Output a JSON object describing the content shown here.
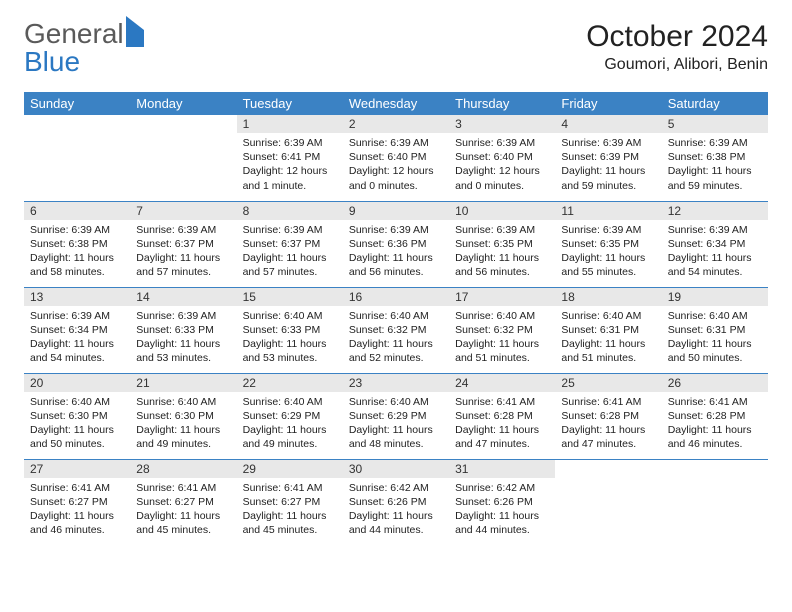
{
  "logo": {
    "text1": "General",
    "text2": "Blue"
  },
  "title": "October 2024",
  "location": "Goumori, Alibori, Benin",
  "colors": {
    "header_bg": "#3b82c4",
    "header_fg": "#ffffff",
    "daynum_bg": "#e8e8e8",
    "border": "#3b82c4",
    "logo_gray": "#5a5a5a",
    "logo_blue": "#2b78c2"
  },
  "weekdays": [
    "Sunday",
    "Monday",
    "Tuesday",
    "Wednesday",
    "Thursday",
    "Friday",
    "Saturday"
  ],
  "weeks": [
    [
      null,
      null,
      {
        "n": "1",
        "sr": "6:39 AM",
        "ss": "6:41 PM",
        "dl": "12 hours and 1 minute."
      },
      {
        "n": "2",
        "sr": "6:39 AM",
        "ss": "6:40 PM",
        "dl": "12 hours and 0 minutes."
      },
      {
        "n": "3",
        "sr": "6:39 AM",
        "ss": "6:40 PM",
        "dl": "12 hours and 0 minutes."
      },
      {
        "n": "4",
        "sr": "6:39 AM",
        "ss": "6:39 PM",
        "dl": "11 hours and 59 minutes."
      },
      {
        "n": "5",
        "sr": "6:39 AM",
        "ss": "6:38 PM",
        "dl": "11 hours and 59 minutes."
      }
    ],
    [
      {
        "n": "6",
        "sr": "6:39 AM",
        "ss": "6:38 PM",
        "dl": "11 hours and 58 minutes."
      },
      {
        "n": "7",
        "sr": "6:39 AM",
        "ss": "6:37 PM",
        "dl": "11 hours and 57 minutes."
      },
      {
        "n": "8",
        "sr": "6:39 AM",
        "ss": "6:37 PM",
        "dl": "11 hours and 57 minutes."
      },
      {
        "n": "9",
        "sr": "6:39 AM",
        "ss": "6:36 PM",
        "dl": "11 hours and 56 minutes."
      },
      {
        "n": "10",
        "sr": "6:39 AM",
        "ss": "6:35 PM",
        "dl": "11 hours and 56 minutes."
      },
      {
        "n": "11",
        "sr": "6:39 AM",
        "ss": "6:35 PM",
        "dl": "11 hours and 55 minutes."
      },
      {
        "n": "12",
        "sr": "6:39 AM",
        "ss": "6:34 PM",
        "dl": "11 hours and 54 minutes."
      }
    ],
    [
      {
        "n": "13",
        "sr": "6:39 AM",
        "ss": "6:34 PM",
        "dl": "11 hours and 54 minutes."
      },
      {
        "n": "14",
        "sr": "6:39 AM",
        "ss": "6:33 PM",
        "dl": "11 hours and 53 minutes."
      },
      {
        "n": "15",
        "sr": "6:40 AM",
        "ss": "6:33 PM",
        "dl": "11 hours and 53 minutes."
      },
      {
        "n": "16",
        "sr": "6:40 AM",
        "ss": "6:32 PM",
        "dl": "11 hours and 52 minutes."
      },
      {
        "n": "17",
        "sr": "6:40 AM",
        "ss": "6:32 PM",
        "dl": "11 hours and 51 minutes."
      },
      {
        "n": "18",
        "sr": "6:40 AM",
        "ss": "6:31 PM",
        "dl": "11 hours and 51 minutes."
      },
      {
        "n": "19",
        "sr": "6:40 AM",
        "ss": "6:31 PM",
        "dl": "11 hours and 50 minutes."
      }
    ],
    [
      {
        "n": "20",
        "sr": "6:40 AM",
        "ss": "6:30 PM",
        "dl": "11 hours and 50 minutes."
      },
      {
        "n": "21",
        "sr": "6:40 AM",
        "ss": "6:30 PM",
        "dl": "11 hours and 49 minutes."
      },
      {
        "n": "22",
        "sr": "6:40 AM",
        "ss": "6:29 PM",
        "dl": "11 hours and 49 minutes."
      },
      {
        "n": "23",
        "sr": "6:40 AM",
        "ss": "6:29 PM",
        "dl": "11 hours and 48 minutes."
      },
      {
        "n": "24",
        "sr": "6:41 AM",
        "ss": "6:28 PM",
        "dl": "11 hours and 47 minutes."
      },
      {
        "n": "25",
        "sr": "6:41 AM",
        "ss": "6:28 PM",
        "dl": "11 hours and 47 minutes."
      },
      {
        "n": "26",
        "sr": "6:41 AM",
        "ss": "6:28 PM",
        "dl": "11 hours and 46 minutes."
      }
    ],
    [
      {
        "n": "27",
        "sr": "6:41 AM",
        "ss": "6:27 PM",
        "dl": "11 hours and 46 minutes."
      },
      {
        "n": "28",
        "sr": "6:41 AM",
        "ss": "6:27 PM",
        "dl": "11 hours and 45 minutes."
      },
      {
        "n": "29",
        "sr": "6:41 AM",
        "ss": "6:27 PM",
        "dl": "11 hours and 45 minutes."
      },
      {
        "n": "30",
        "sr": "6:42 AM",
        "ss": "6:26 PM",
        "dl": "11 hours and 44 minutes."
      },
      {
        "n": "31",
        "sr": "6:42 AM",
        "ss": "6:26 PM",
        "dl": "11 hours and 44 minutes."
      },
      null,
      null
    ]
  ],
  "labels": {
    "sunrise": "Sunrise: ",
    "sunset": "Sunset: ",
    "daylight": "Daylight: "
  }
}
